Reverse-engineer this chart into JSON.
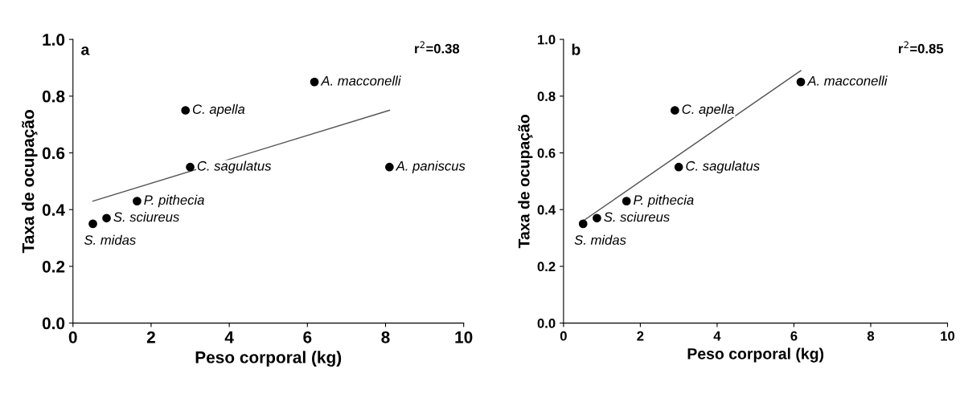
{
  "chart_data": [
    {
      "type": "scatter",
      "title": "a",
      "xlabel": "Peso corporal (kg)",
      "ylabel": "Taxa de ocupação",
      "xlim": [
        0,
        10
      ],
      "xticks": [
        0,
        2,
        4,
        6,
        8,
        10
      ],
      "ylim": [
        0,
        1.0
      ],
      "yticks": [
        {
          "value": 0,
          "label": "0.0"
        },
        {
          "value": 0.2,
          "label": "0.2"
        },
        {
          "value": 0.4,
          "label": "0.4"
        },
        {
          "value": 0.6,
          "label": "0.6"
        },
        {
          "value": 0.8,
          "label": "0.8"
        },
        {
          "value": 1.0,
          "label": "1.0"
        }
      ],
      "grid": false,
      "series": [
        {
          "marker": "circle",
          "color": "#000000",
          "x": [
            0.51,
            0.86,
            1.64,
            3.0,
            2.88,
            6.18,
            8.1
          ],
          "values": [
            0.35,
            0.37,
            0.43,
            0.55,
            0.75,
            0.85,
            0.55
          ]
        },
        {
          "type": "line",
          "color": "#555555",
          "x": [
            0.51,
            8.1
          ],
          "values": [
            0.43,
            0.75
          ]
        }
      ],
      "annotations": [
        {
          "text": "S. midas",
          "x": 0.51,
          "y": 0.35
        },
        {
          "text": "S. sciureus",
          "x": 0.86,
          "y": 0.37
        },
        {
          "text": "P. pithecia",
          "x": 1.64,
          "y": 0.43
        },
        {
          "text": "C. sagulatus",
          "x": 3.0,
          "y": 0.55
        },
        {
          "text": "C. apella",
          "x": 2.88,
          "y": 0.75
        },
        {
          "text": "A. macconelli",
          "x": 6.18,
          "y": 0.85
        },
        {
          "text": "A. paniscus",
          "x": 8.1,
          "y": 0.55
        },
        "r$^{2}$=0.38"
      ]
    },
    {
      "type": "scatter",
      "title": "b",
      "xlabel": "Peso corporal (kg)",
      "ylabel": "Taxa de ocupação",
      "xlim": [
        0,
        10
      ],
      "xticks": [
        0,
        2,
        4,
        6,
        8,
        10
      ],
      "ylim": [
        0,
        1.0
      ],
      "yticks": [
        {
          "value": 0,
          "label": "0.0"
        },
        {
          "value": 0.2,
          "label": "0.2"
        },
        {
          "value": 0.4,
          "label": "0.4"
        },
        {
          "value": 0.6,
          "label": "0.6"
        },
        {
          "value": 0.8,
          "label": "0.8"
        },
        {
          "value": 1.0,
          "label": "1.0"
        }
      ],
      "grid": false,
      "series": [
        {
          "marker": "circle",
          "color": "#000000",
          "x": [
            0.51,
            0.87,
            1.64,
            3.0,
            2.9,
            6.18
          ],
          "values": [
            0.35,
            0.37,
            0.43,
            0.55,
            0.75,
            0.85
          ]
        },
        {
          "type": "line",
          "color": "#555555",
          "x": [
            0.51,
            6.18
          ],
          "values": [
            0.36,
            0.89
          ]
        }
      ],
      "annotations": [
        {
          "text": "S. midas",
          "x": 0.51,
          "y": 0.35
        },
        {
          "text": "S. sciureus",
          "x": 0.87,
          "y": 0.37
        },
        {
          "text": "P. pithecia",
          "x": 1.64,
          "y": 0.43
        },
        {
          "text": "C. sagulatus",
          "x": 3.0,
          "y": 0.55
        },
        {
          "text": "C. apella",
          "x": 2.9,
          "y": 0.75
        },
        {
          "text": "A. macconelli",
          "x": 6.18,
          "y": 0.85
        },
        "r$^{2}$=0.85"
      ]
    }
  ]
}
